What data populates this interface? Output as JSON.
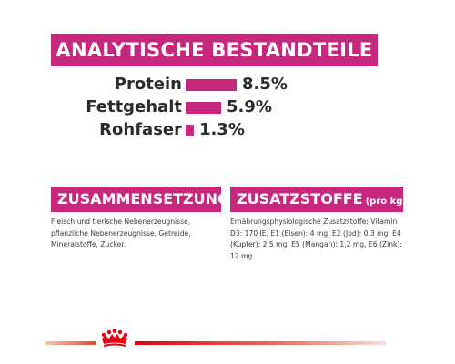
{
  "header": {
    "title": "ANALYTISCHE BESTANDTEILE"
  },
  "nutrients": [
    {
      "label": "Protein",
      "value": "8.5%",
      "amount": 8.5
    },
    {
      "label": "Fettgehalt",
      "value": "5.9%",
      "amount": 5.9
    },
    {
      "label": "Rohfaser",
      "value": "1.3%",
      "amount": 1.3
    }
  ],
  "composition": {
    "title": "ZUSAMMENSETZUNG",
    "text": "Fleisch und tierische Nebenerzeugnisse, pflanzliche Nebenerzeugnisse, Getreide, Mineralstoffe, Zucker."
  },
  "additives": {
    "title": "ZUSATZSTOFFE",
    "title_suffix": "(pro kg)",
    "text": "Ernährungsphysiologische Zusatzstoffe: Vitamin D3: 170 IE, E1 (Eisen): 4 mg, E2 (Jod): 0,3 mg, E4 (Kupfer): 2,5 mg, E5 (Mangan): 1,2 mg, E6 (Zink): 12 mg."
  },
  "brand": {
    "logo": "royal-canin-crown-icon"
  },
  "colors": {
    "accent": "#c7277c",
    "text": "#2b2b2b",
    "footer_red": "#e3000f"
  }
}
